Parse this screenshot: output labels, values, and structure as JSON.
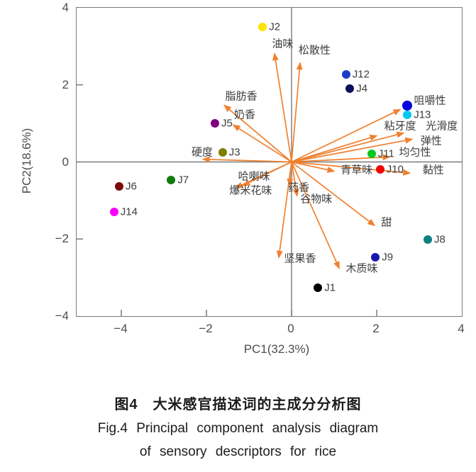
{
  "figure": {
    "caption_zh": "图4　大米感官描述词的主成分分析图",
    "caption_en_line1": "Fig.4  Principal component analysis diagram",
    "caption_en_line2": "of sensory descriptors for rice"
  },
  "chart_data": {
    "type": "scatter",
    "title": "大米感官描述词的主成分分析图 (PCA biplot)",
    "xlabel": "PC1(32.3%)",
    "ylabel": "PC2(18.6%)",
    "xlim": [
      -5.05,
      4
    ],
    "ylim": [
      -4,
      4
    ],
    "x_ticks": [
      {
        "value": -4,
        "label": "−4"
      },
      {
        "value": -2,
        "label": "−2"
      },
      {
        "value": 0,
        "label": "0"
      },
      {
        "value": 2,
        "label": "2"
      },
      {
        "value": 4,
        "label": "4"
      }
    ],
    "y_ticks": [
      {
        "value": 4,
        "label": "4"
      },
      {
        "value": 2,
        "label": "2"
      },
      {
        "value": 0,
        "label": "0"
      },
      {
        "value": -2,
        "label": "−2"
      },
      {
        "value": -4,
        "label": "−4"
      }
    ],
    "x_inner_ticks": [
      -4,
      -2,
      0,
      2
    ],
    "y_inner_ticks": [
      2,
      -2
    ],
    "grid": false,
    "legend": "none",
    "colors": {
      "arrow": "#F0802F",
      "axis": "#7a7a7a",
      "text": "#3d3d3d"
    },
    "points": [
      {
        "label": "J1",
        "x": 0.62,
        "y": -3.27,
        "color": "#000000",
        "size": 12
      },
      {
        "label": "J2",
        "x": -0.68,
        "y": 3.51,
        "color": "#FFE400",
        "size": 12
      },
      {
        "label": "J3",
        "x": -1.62,
        "y": 0.24,
        "color": "#7F7F00",
        "size": 12
      },
      {
        "label": "J4",
        "x": 1.37,
        "y": 1.91,
        "color": "#0E0E5C",
        "size": 12
      },
      {
        "label": "J5",
        "x": -1.8,
        "y": 1.01,
        "color": "#7F007F",
        "size": 12
      },
      {
        "label": "J6",
        "x": -4.05,
        "y": -0.64,
        "color": "#7D0A0A",
        "size": 12
      },
      {
        "label": "J7",
        "x": -2.83,
        "y": -0.46,
        "color": "#107C10",
        "size": 12
      },
      {
        "label": "J8",
        "x": 3.2,
        "y": -2.02,
        "color": "#0E8080",
        "size": 12
      },
      {
        "label": "J9",
        "x": 1.97,
        "y": -2.48,
        "color": "#1717B0",
        "size": 12
      },
      {
        "label": "J10",
        "x": 2.08,
        "y": -0.2,
        "color": "#F00000",
        "size": 12
      },
      {
        "label": "J11",
        "x": 1.88,
        "y": 0.22,
        "color": "#00C81E",
        "size": 12
      },
      {
        "label": "J12",
        "x": 1.28,
        "y": 2.28,
        "color": "#1E3CC8",
        "size": 12
      },
      {
        "label": "J13",
        "x": 2.72,
        "y": 1.23,
        "color": "#00C8F0",
        "size": 12
      },
      {
        "label": "J14",
        "x": -4.17,
        "y": -1.29,
        "color": "#FA00FA",
        "size": 12
      },
      {
        "label": "",
        "x": 2.72,
        "y": 1.47,
        "color": "#0202DC",
        "size": 14
      }
    ],
    "vectors": [
      {
        "label": "油味",
        "x": -0.4,
        "y": 2.81,
        "label_x": -0.21,
        "label_y": 3.06
      },
      {
        "label": "松散性",
        "x": 0.2,
        "y": 2.57,
        "label_x": 0.54,
        "label_y": 2.9
      },
      {
        "label": "脂肪香",
        "x": -1.58,
        "y": 1.47,
        "label_x": -1.18,
        "label_y": 1.7
      },
      {
        "label": "奶香",
        "x": -1.37,
        "y": 0.96,
        "label_x": -1.1,
        "label_y": 1.22
      },
      {
        "label": "硬度",
        "x": -2.08,
        "y": 0.07,
        "label_x": -2.1,
        "label_y": 0.25
      },
      {
        "label": "哈喇味",
        "x": -1.14,
        "y": -0.61,
        "label_x": -0.88,
        "label_y": -0.38
      },
      {
        "label": "爆米花味",
        "x": -1.31,
        "y": -0.67,
        "label_x": -0.96,
        "label_y": -0.74
      },
      {
        "label": "药香",
        "x": -0.05,
        "y": -0.61,
        "label_x": 0.17,
        "label_y": -0.68
      },
      {
        "label": "谷物味",
        "x": 0.13,
        "y": -0.88,
        "label_x": 0.58,
        "label_y": -0.96
      },
      {
        "label": "坚果香",
        "x": -0.3,
        "y": -2.48,
        "label_x": 0.2,
        "label_y": -2.51
      },
      {
        "label": "木质味",
        "x": 1.12,
        "y": -2.76,
        "label_x": 1.65,
        "label_y": -2.77
      },
      {
        "label": "甜",
        "x": 1.95,
        "y": -1.65,
        "label_x": 2.23,
        "label_y": -1.58
      },
      {
        "label": "青草味",
        "x": 1.0,
        "y": -0.24,
        "label_x": 1.53,
        "label_y": -0.21
      },
      {
        "label": "黏性",
        "x": 2.78,
        "y": -0.29,
        "label_x": 3.33,
        "label_y": -0.21
      },
      {
        "label": "均匀性",
        "x": 2.3,
        "y": 0.13,
        "label_x": 2.9,
        "label_y": 0.24
      },
      {
        "label": "弹性",
        "x": 2.83,
        "y": 0.59,
        "label_x": 3.28,
        "label_y": 0.54
      },
      {
        "label": "光滑度",
        "x": 2.63,
        "y": 0.75,
        "label_x": 3.53,
        "label_y": 0.92
      },
      {
        "label": "粘牙度",
        "x": 2.0,
        "y": 0.68,
        "label_x": 2.55,
        "label_y": 0.92
      },
      {
        "label": "咀嚼性",
        "x": 2.55,
        "y": 1.36,
        "label_x": 3.25,
        "label_y": 1.6
      }
    ]
  }
}
